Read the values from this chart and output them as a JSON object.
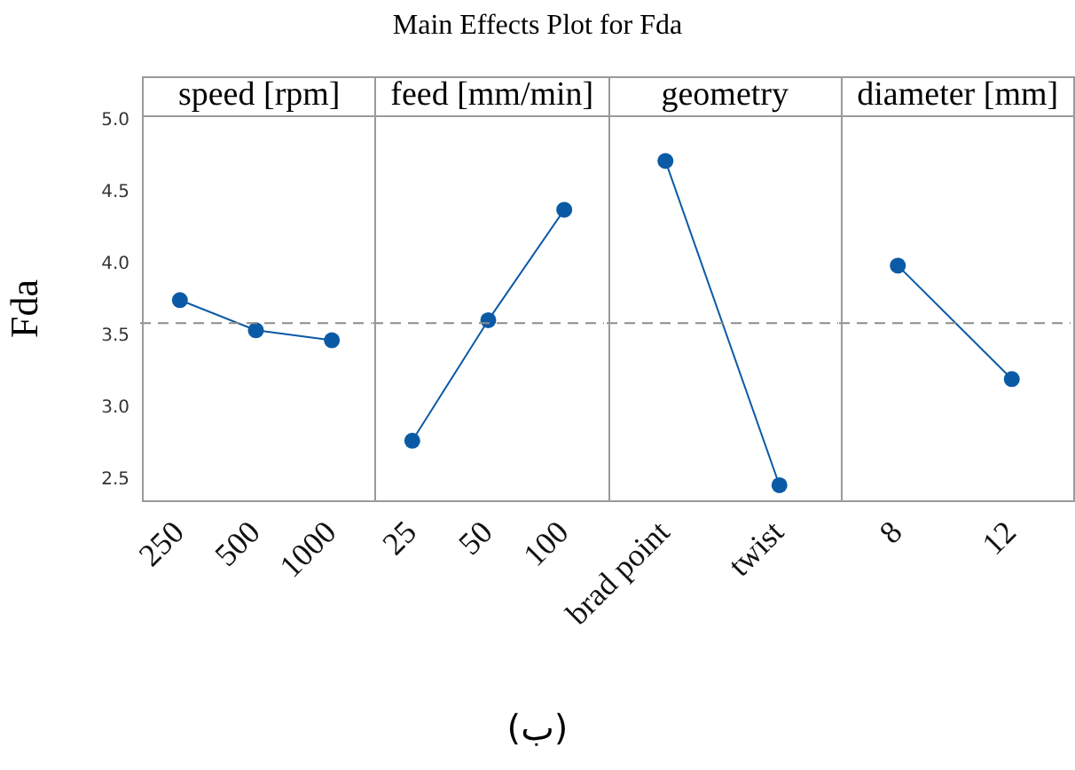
{
  "chart_data": [
    {
      "type": "line",
      "title": "speed [rpm]",
      "ylabel": "Fda",
      "categories": [
        "250",
        "500",
        "1000"
      ],
      "values": [
        3.75,
        3.54,
        3.47
      ],
      "color": "#0b5aa6",
      "marker": "circle",
      "ylim": [
        2.33,
        5.05
      ],
      "yticks": [
        2.5,
        {
          "value": 3,
          "label": "3.0"
        },
        3.5,
        {
          "value": 4,
          "label": "4.0"
        },
        4.5,
        {
          "value": 5,
          "label": "5.0"
        }
      ],
      "ref_lines": [
        {
          "axis": "y",
          "value": 3.59,
          "color": "#8c8c8c",
          "line_style": "dashed"
        }
      ],
      "annotations": [
        "Main Effects Plot for Fda",
        "(ب)"
      ]
    },
    {
      "type": "line",
      "title": "feed [mm/min]",
      "categories": [
        "25",
        "50",
        "100"
      ],
      "values": [
        2.77,
        3.61,
        4.38
      ],
      "color": "#0b5aa6",
      "marker": "circle",
      "ylim": [
        2.33,
        5.05
      ],
      "tick_labels": "x",
      "ref_lines": [
        {
          "axis": "y",
          "value": 3.59,
          "color": "#8c8c8c",
          "line_style": "dashed"
        }
      ]
    },
    {
      "type": "line",
      "title": "geometry",
      "categories": [
        "brad point",
        "twist"
      ],
      "values": [
        4.72,
        2.46
      ],
      "color": "#0b5aa6",
      "marker": "circle",
      "ylim": [
        2.33,
        5.05
      ],
      "tick_labels": "x",
      "ref_lines": [
        {
          "axis": "y",
          "value": 3.59,
          "color": "#8c8c8c",
          "line_style": "dashed"
        }
      ]
    },
    {
      "type": "line",
      "title": "diameter [mm]",
      "categories": [
        "8",
        "12"
      ],
      "values": [
        3.99,
        3.2
      ],
      "color": "#0b5aa6",
      "marker": "circle",
      "ylim": [
        2.33,
        5.05
      ],
      "tick_labels": "x",
      "ref_lines": [
        {
          "axis": "y",
          "value": 3.59,
          "color": "#8c8c8c",
          "line_style": "dashed"
        }
      ]
    }
  ]
}
